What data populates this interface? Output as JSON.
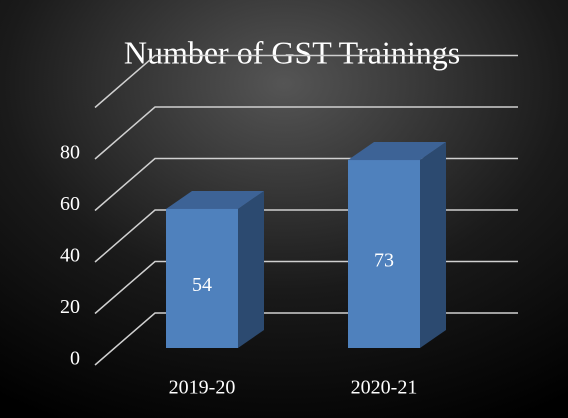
{
  "chart_data": {
    "type": "bar3d",
    "title": "Number of GST Trainings",
    "categories": [
      "2019-20",
      "2020-21"
    ],
    "values": [
      54,
      73
    ],
    "color": "#4f81bd",
    "ylim": [
      0,
      100
    ],
    "yticks": [
      0,
      20,
      40,
      60,
      80
    ],
    "grid": true
  }
}
